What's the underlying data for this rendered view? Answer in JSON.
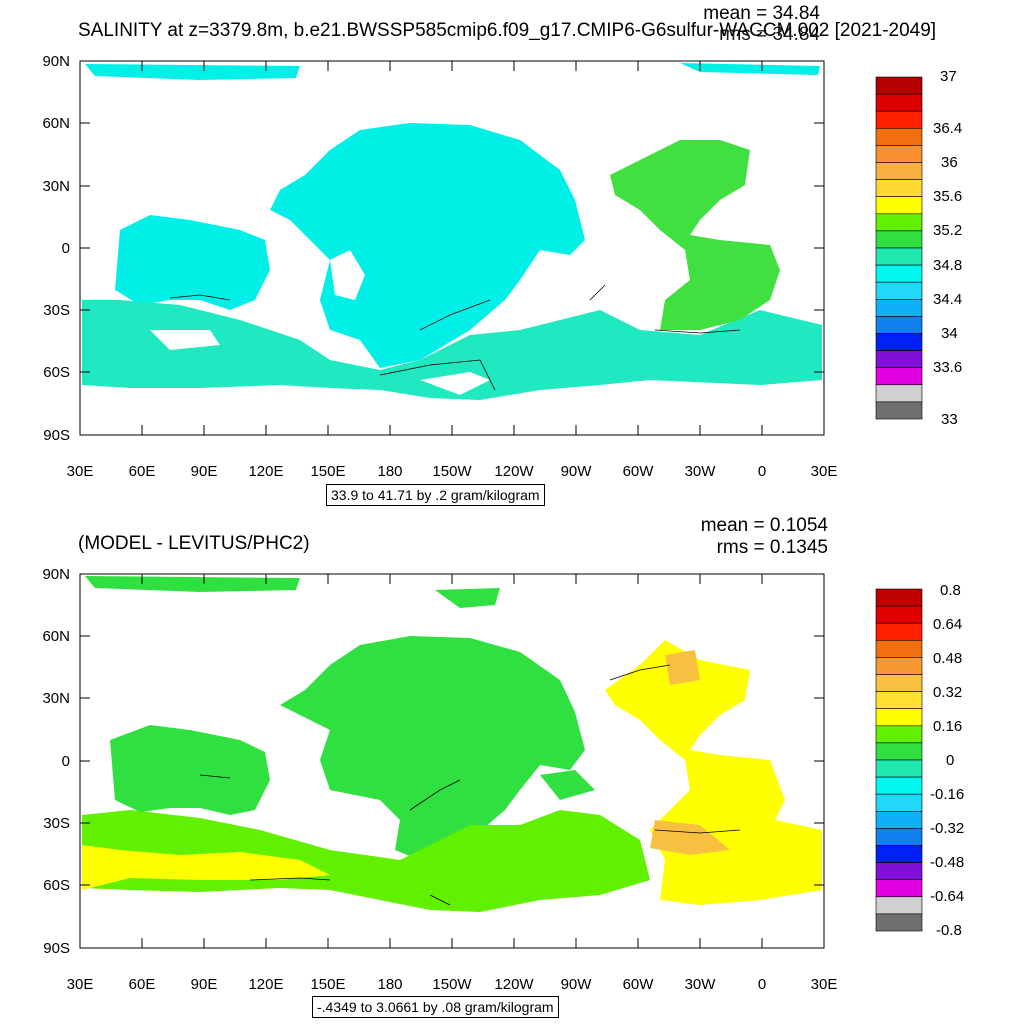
{
  "panels": [
    {
      "title": "SALINITY at z=3379.8m, b.e21.BWSSP585cmip6.f09_g17.CMIP6-G6sulfur-WACCM.002 [2021-2049]",
      "mean_text": "mean = 34.84",
      "rms_text": "rms = 34.84",
      "range_text": "33.9 to 41.71 by .2 gram/kilogram",
      "colorbar": {
        "labels": [
          "37",
          "36.4",
          "36",
          "35.6",
          "35.2",
          "34.8",
          "34.4",
          "34",
          "33.6",
          "33"
        ],
        "colors_top_to_bottom": [
          "#b40000",
          "#dc0000",
          "#ff2000",
          "#f07010",
          "#f89030",
          "#f8b040",
          "#ffd830",
          "#ffff00",
          "#60f000",
          "#30e040",
          "#20e8b0",
          "#00f8f0",
          "#20d8f8",
          "#10b0f8",
          "#1080f0",
          "#0020f8",
          "#8010d8",
          "#e000e0",
          "#d0d0d0",
          "#707070"
        ]
      },
      "ocean_color": "#00f0e8",
      "southern_color": "#20e8c0",
      "atlantic_color": "#40e040"
    },
    {
      "title": "(MODEL - LEVITUS/PHC2)",
      "mean_text": "mean = 0.1054",
      "rms_text": "rms = 0.1345",
      "range_text": "-.4349 to 3.0661 by .08 gram/kilogram",
      "colorbar": {
        "labels": [
          "0.8",
          "0.64",
          "0.48",
          "0.32",
          "0.16",
          "0",
          "-0.16",
          "-0.32",
          "-0.48",
          "-0.64",
          "-0.8"
        ],
        "colors_top_to_bottom": [
          "#c00000",
          "#e00000",
          "#ff2000",
          "#f07010",
          "#f89830",
          "#f8c040",
          "#ffe030",
          "#ffff00",
          "#60f000",
          "#30e040",
          "#20e8b0",
          "#00f8f0",
          "#20d8f8",
          "#10b0f8",
          "#1080f0",
          "#0020f8",
          "#8010d8",
          "#e000e0",
          "#d0d0d0",
          "#707070"
        ]
      },
      "ocean_color": "#30e040",
      "southern_color": "#60f000",
      "atlantic_color": "#ffff00"
    }
  ],
  "axes": {
    "y_labels": [
      "90N",
      "60N",
      "30N",
      "0",
      "30S",
      "60S",
      "90S"
    ],
    "x_labels": [
      "30E",
      "60E",
      "90E",
      "120E",
      "150E",
      "180",
      "150W",
      "120W",
      "90W",
      "60W",
      "30W",
      "0",
      "30E"
    ]
  }
}
